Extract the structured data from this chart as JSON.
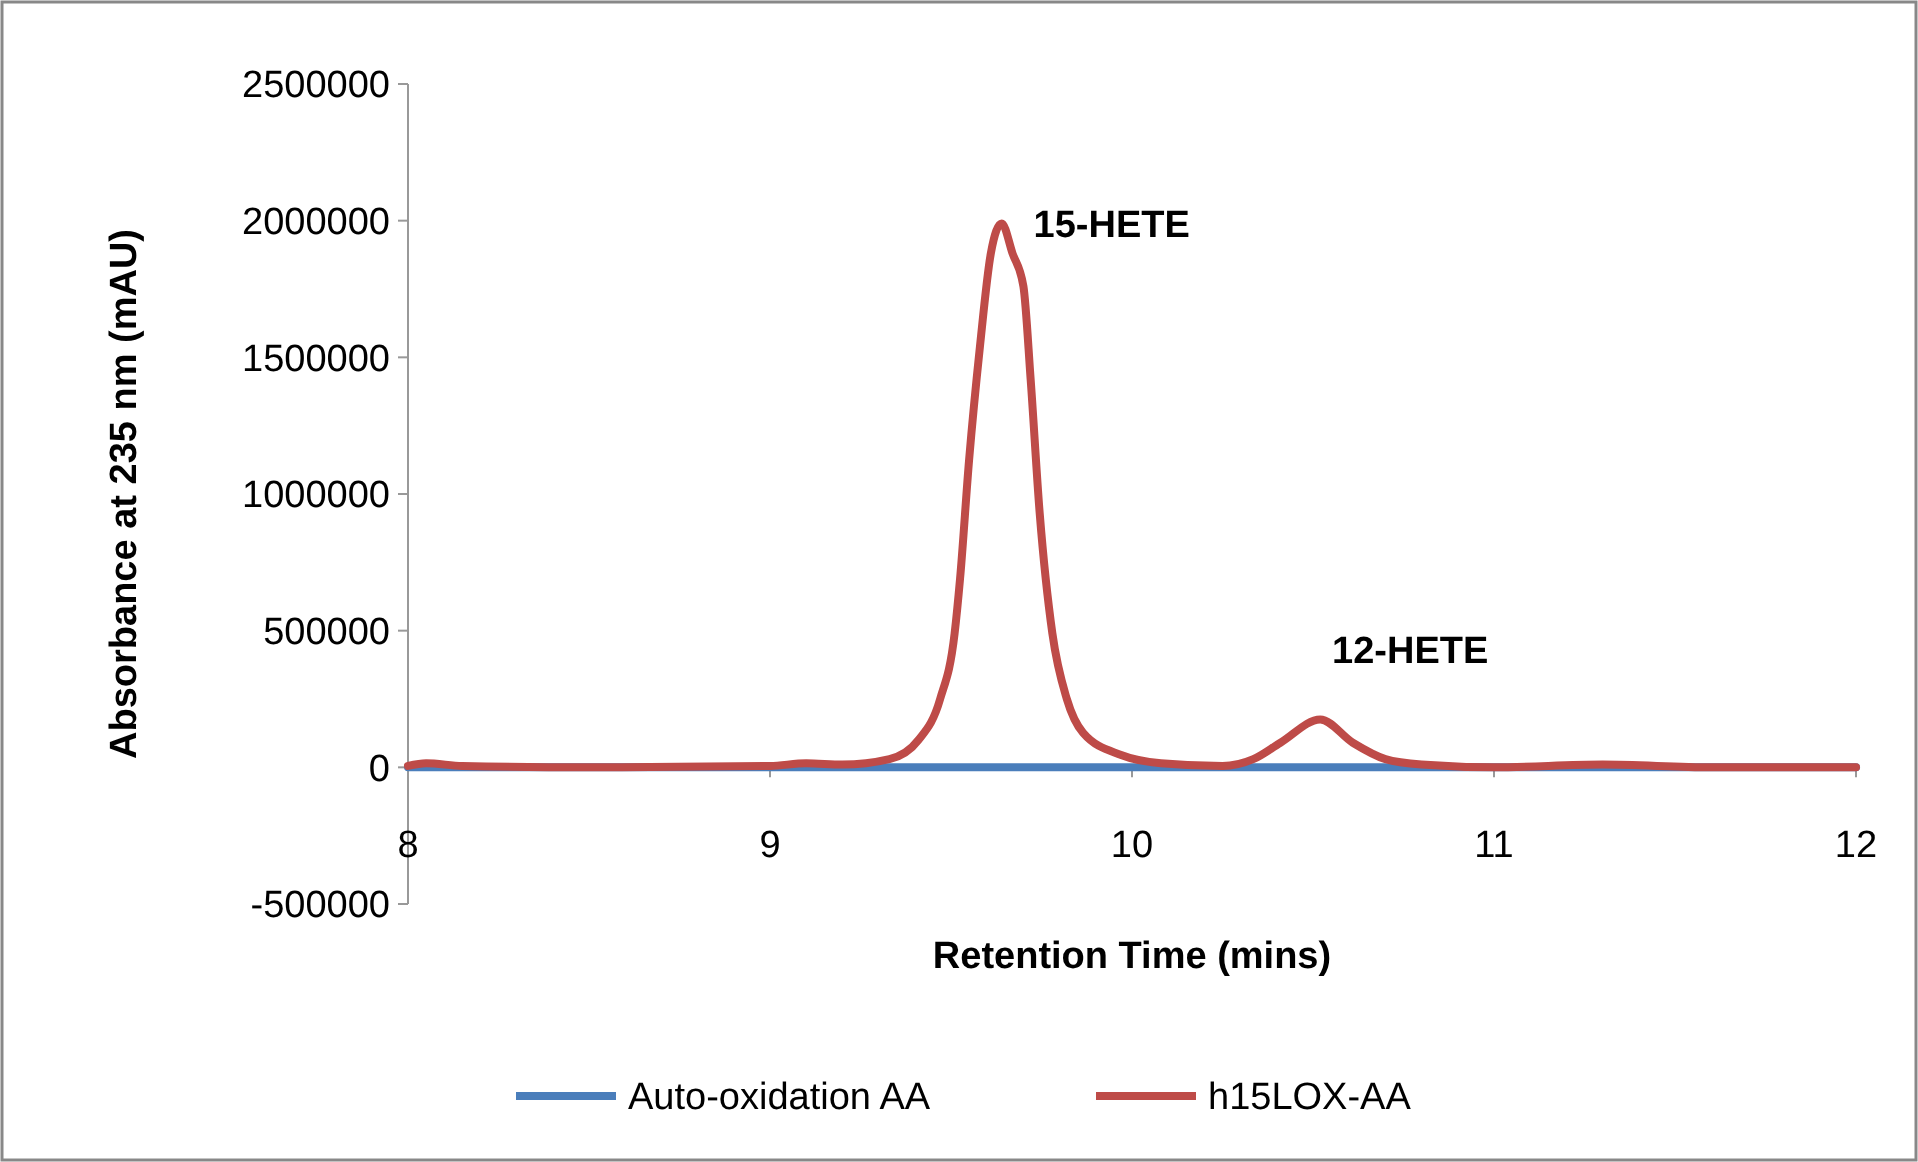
{
  "chart_data": {
    "type": "line",
    "xlabel": "Retention Time (mins)",
    "ylabel": "Absorbance at 235 nm (mAU)",
    "xlim": [
      8,
      12
    ],
    "xticks": [
      8,
      9,
      10,
      11,
      12
    ],
    "ylim": [
      -500000,
      2500000
    ],
    "yticks": [
      -500000,
      0,
      500000,
      1000000,
      1500000,
      2000000,
      2500000
    ],
    "grid": false,
    "legend": "bottom",
    "marker": "none",
    "line_style": "solid",
    "annotations": [
      {
        "text": "15-HETE",
        "x": 9.64,
        "y": 1990000
      },
      {
        "text": "12-HETE",
        "x": 10.52,
        "y": 175000
      }
    ],
    "series": [
      {
        "name": "Auto-oxidation AA",
        "color": "#4a7ebb",
        "x": [
          8,
          8.5,
          9,
          9.3,
          9.6,
          10,
          10.5,
          11,
          11.5,
          12
        ],
        "values": [
          0,
          0,
          0,
          0,
          0,
          0,
          0,
          0,
          0,
          0
        ]
      },
      {
        "name": "h15LOX-AA",
        "color": "#be4b48",
        "x": [
          8,
          8.05,
          8.15,
          8.5,
          9,
          9.1,
          9.2,
          9.33,
          9.41,
          9.47,
          9.51,
          9.525,
          9.55,
          9.58,
          9.61,
          9.64,
          9.67,
          9.7,
          9.72,
          9.745,
          9.78,
          9.82,
          9.865,
          9.97,
          10.08,
          10.25,
          10.335,
          10.41,
          10.52,
          10.61,
          10.7,
          10.8,
          11,
          11.3,
          11.6,
          12
        ],
        "values": [
          5000,
          15000,
          5000,
          0,
          5000,
          15000,
          10000,
          30000,
          100000,
          250000,
          490000,
          690000,
          1125000,
          1540000,
          1880000,
          1990000,
          1880000,
          1760000,
          1420000,
          930000,
          490000,
          250000,
          126000,
          45000,
          15000,
          5000,
          30000,
          90000,
          175000,
          90000,
          30000,
          10000,
          0,
          10000,
          0,
          0
        ]
      }
    ]
  }
}
